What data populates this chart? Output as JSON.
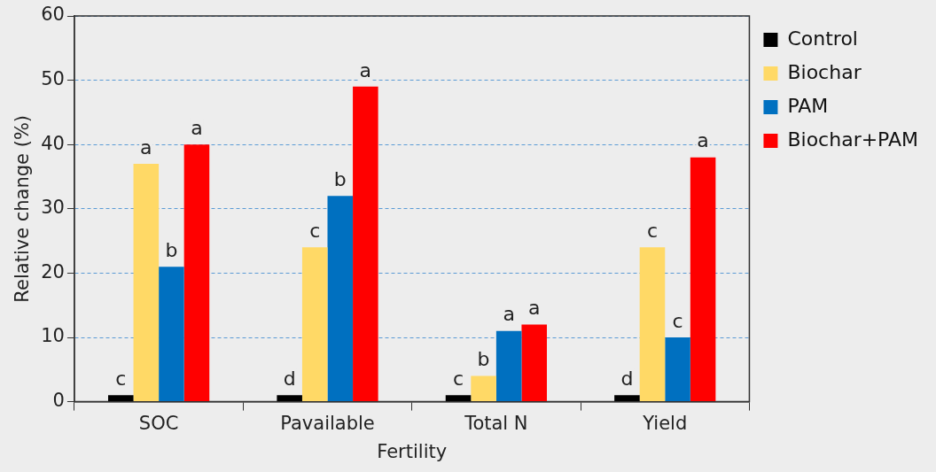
{
  "chart_data": {
    "type": "bar",
    "xlabel": "Fertility",
    "ylabel": "Relative change (%)",
    "categories": [
      "SOC",
      "Pavailable",
      "Total N",
      "Yield"
    ],
    "series": [
      {
        "name": "Control",
        "color": "#000000",
        "values": [
          1,
          1,
          1,
          1
        ],
        "value_labels": [
          "c",
          "d",
          "c",
          "d"
        ]
      },
      {
        "name": "Biochar",
        "color": "#ffd966",
        "values": [
          37,
          24,
          4,
          24
        ],
        "value_labels": [
          "a",
          "c",
          "b",
          "c"
        ]
      },
      {
        "name": "PAM",
        "color": "#0070c0",
        "values": [
          21,
          32,
          11,
          10
        ],
        "value_labels": [
          "b",
          "b",
          "a",
          "c"
        ]
      },
      {
        "name": "Biochar+PAM",
        "color": "#ff0000",
        "values": [
          40,
          49,
          12,
          38
        ],
        "value_labels": [
          "a",
          "a",
          "a",
          "a"
        ]
      }
    ],
    "ylim": [
      0,
      60
    ],
    "yticks": [
      0,
      10,
      20,
      30,
      40,
      50,
      60
    ],
    "grid": "y",
    "legend": "right"
  }
}
